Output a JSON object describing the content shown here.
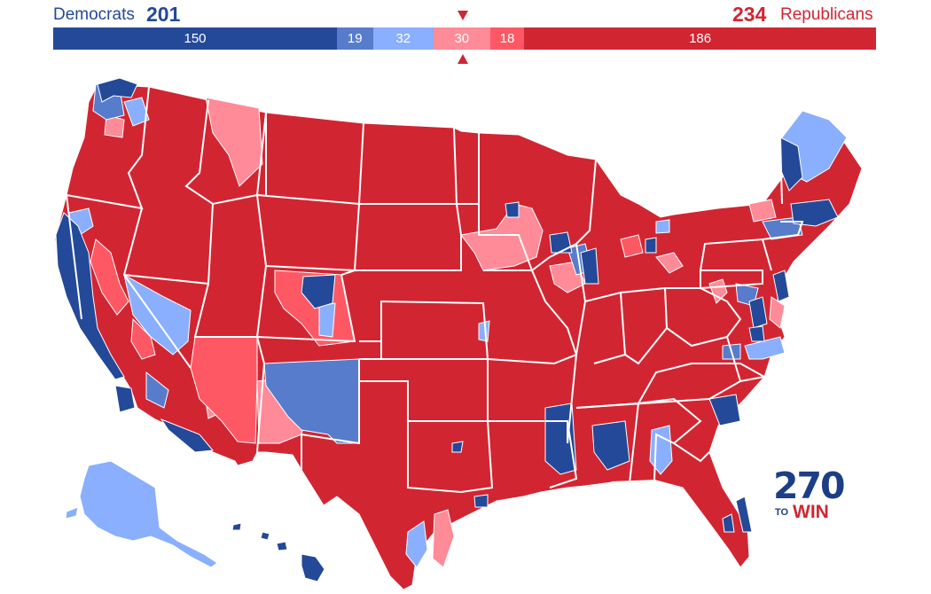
{
  "header": {
    "dem_label": "Democrats",
    "dem_total": "201",
    "rep_total": "234",
    "rep_label": "Republicans"
  },
  "seat_bar": {
    "total_seats": 435,
    "segments": [
      {
        "key": "safe_dem",
        "label": "150",
        "seats": 150,
        "color": "#244999"
      },
      {
        "key": "likely_dem",
        "label": "19",
        "seats": 19,
        "color": "#577ccc"
      },
      {
        "key": "leans_dem",
        "label": "32",
        "seats": 32,
        "color": "#8aaffe"
      },
      {
        "key": "leans_rep",
        "label": "30",
        "seats": 30,
        "color": "#ff8b98"
      },
      {
        "key": "likely_rep",
        "label": "18",
        "seats": 18,
        "color": "#ff5865"
      },
      {
        "key": "safe_rep",
        "label": "186",
        "seats": 186,
        "color": "#d22532"
      }
    ]
  },
  "colors": {
    "safe_dem": "#244999",
    "likely_dem": "#577ccc",
    "leans_dem": "#8aaffe",
    "leans_rep": "#ff8b98",
    "likely_rep": "#ff5865",
    "safe_rep": "#d22532",
    "border": "#ffffff"
  },
  "logo": {
    "number": "270",
    "to": "TO",
    "win": "WIN"
  }
}
